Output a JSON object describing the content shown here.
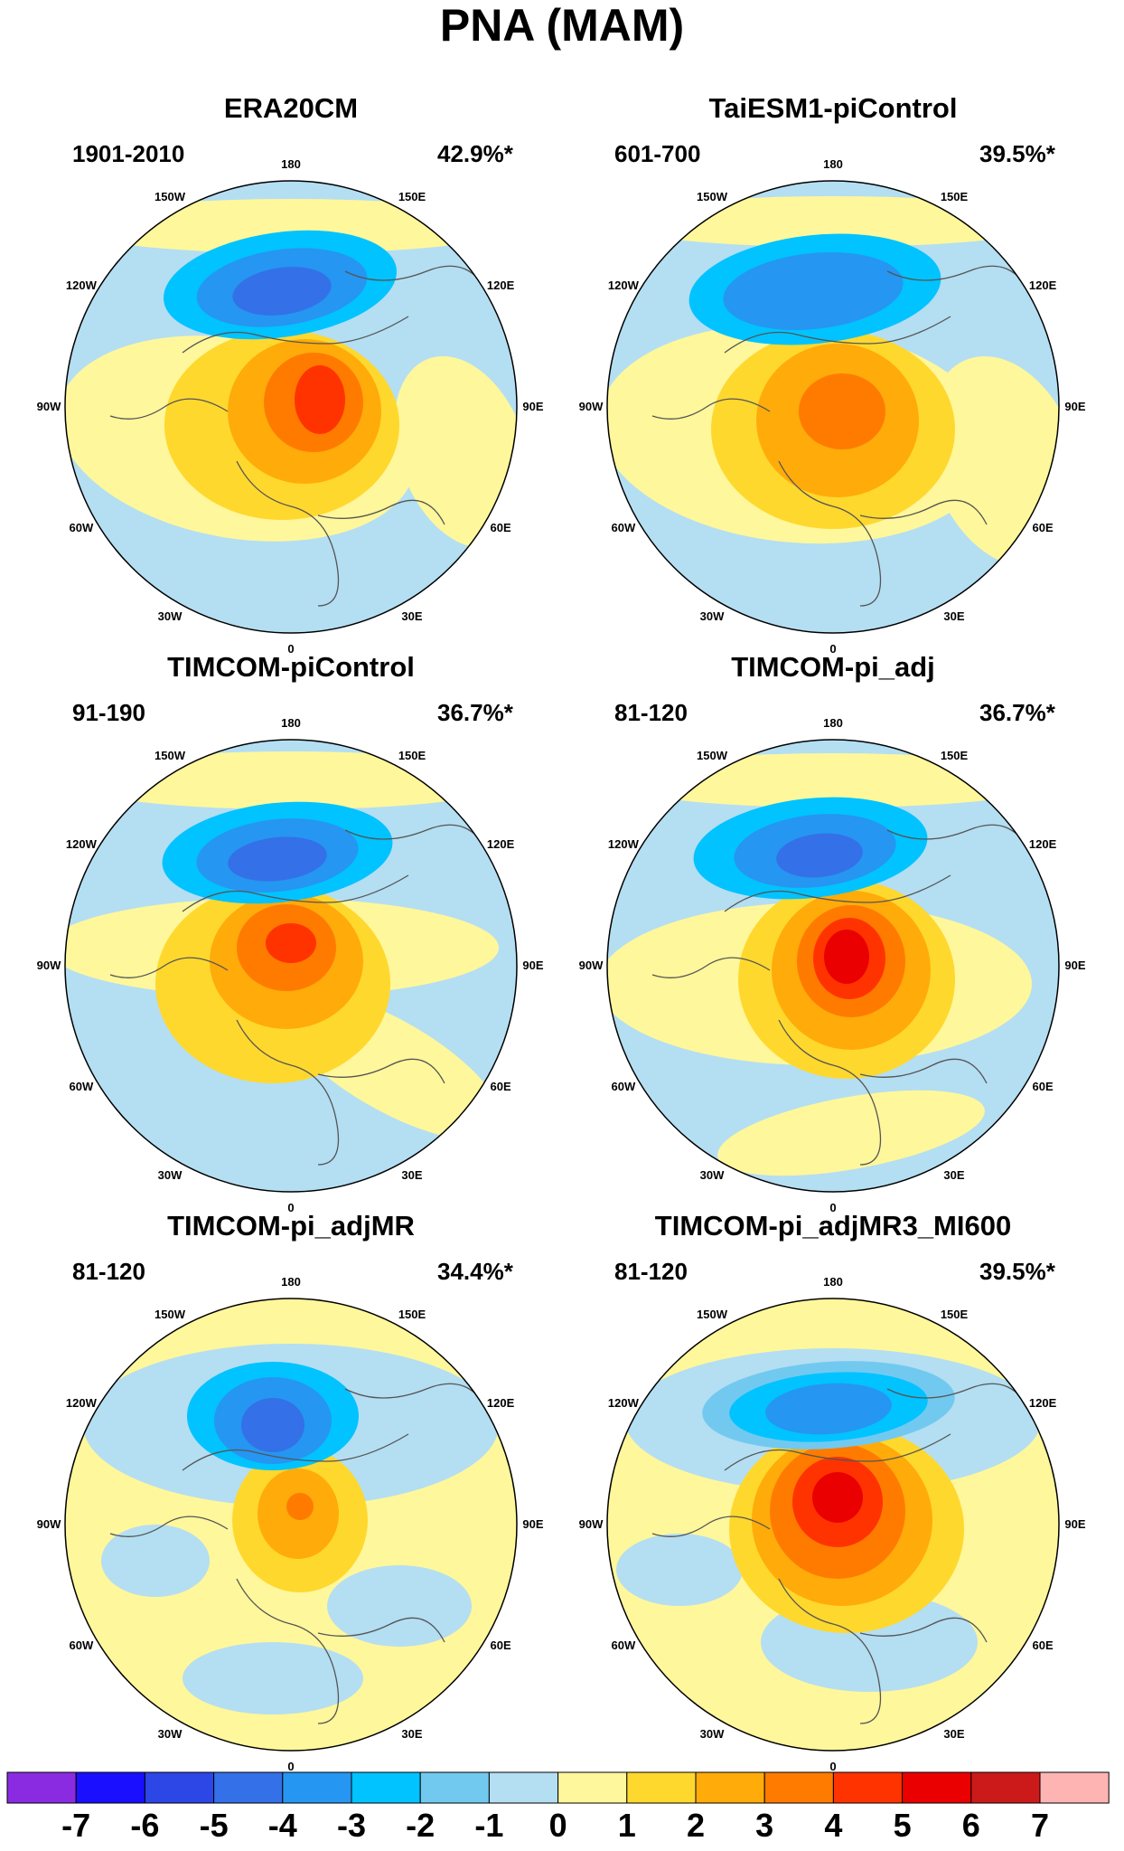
{
  "title": "PNA (MAM)",
  "lon_labels": [
    "180",
    "150E",
    "120E",
    "90E",
    "60E",
    "30E",
    "0",
    "30W",
    "60W",
    "90W",
    "120W",
    "150W"
  ],
  "panels": [
    {
      "title": "ERA20CM",
      "years": "1901-2010",
      "pct": "42.9%*"
    },
    {
      "title": "TaiESM1-piControl",
      "years": "601-700",
      "pct": "39.5%*"
    },
    {
      "title": "TIMCOM-piControl",
      "years": "91-190",
      "pct": "36.7%*"
    },
    {
      "title": "TIMCOM-pi_adj",
      "years": "81-120",
      "pct": "36.7%*"
    },
    {
      "title": "TIMCOM-pi_adjMR",
      "years": "81-120",
      "pct": "34.4%*"
    },
    {
      "title": "TIMCOM-pi_adjMR3_MI600",
      "years": "81-120",
      "pct": "39.5%*"
    }
  ],
  "colorbar": {
    "labels": [
      "-7",
      "-6",
      "-5",
      "-4",
      "-3",
      "-2",
      "-1",
      "0",
      "1",
      "2",
      "3",
      "4",
      "5",
      "6",
      "7"
    ],
    "colors": [
      "#8a2be2",
      "#1a0fff",
      "#2d46e6",
      "#3470e8",
      "#2596f2",
      "#00c3ff",
      "#72c9f0",
      "#b4def2",
      "#fff79b",
      "#ffd82e",
      "#ffab0a",
      "#ff7b00",
      "#ff3300",
      "#ea0000",
      "#cc1a1a",
      "#ffb4b4"
    ]
  },
  "map_colors": {
    "ocean_base": "#b4def2",
    "coast": "#555555"
  }
}
